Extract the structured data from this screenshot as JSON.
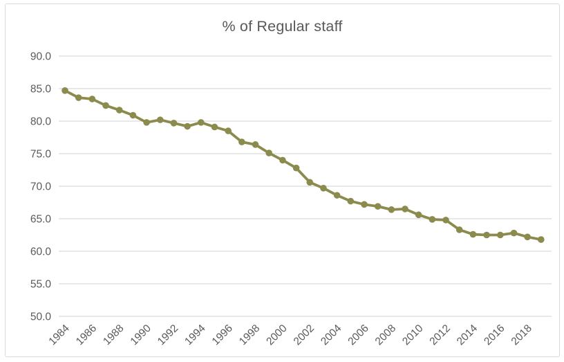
{
  "chart_data": {
    "type": "line",
    "title": "% of Regular staff",
    "x": [
      1984,
      1985,
      1986,
      1987,
      1988,
      1989,
      1990,
      1991,
      1992,
      1993,
      1994,
      1995,
      1996,
      1997,
      1998,
      1999,
      2000,
      2001,
      2002,
      2003,
      2004,
      2005,
      2006,
      2007,
      2008,
      2009,
      2010,
      2011,
      2012,
      2013,
      2014,
      2015,
      2016,
      2017,
      2018,
      2019
    ],
    "series": [
      {
        "name": "% of Regular staff",
        "values": [
          84.7,
          83.6,
          83.4,
          82.4,
          81.7,
          80.9,
          79.8,
          80.2,
          79.7,
          79.2,
          79.8,
          79.1,
          78.5,
          76.8,
          76.4,
          75.1,
          74.0,
          72.8,
          70.6,
          69.7,
          68.6,
          67.7,
          67.2,
          66.9,
          66.4,
          66.5,
          65.6,
          64.9,
          64.8,
          63.3,
          62.6,
          62.5,
          62.5,
          62.8,
          62.2,
          61.8
        ]
      }
    ],
    "x_tick_labels": [
      "1984",
      "1986",
      "1988",
      "1990",
      "1992",
      "1994",
      "1996",
      "1998",
      "2000",
      "2002",
      "2004",
      "2006",
      "2008",
      "2010",
      "2012",
      "2014",
      "2016",
      "2018"
    ],
    "y_ticks": [
      90.0,
      85.0,
      80.0,
      75.0,
      70.0,
      65.0,
      60.0,
      55.0,
      50.0
    ],
    "ylim": [
      50.0,
      90.0
    ],
    "grid": "horizontal",
    "legend": "none",
    "marker": "circle",
    "colors": {
      "line": "#8A8B4D",
      "marker": "#8A8B4D",
      "title_text": "#595959",
      "tick_text": "#595959",
      "gridline": "#d9d9d9",
      "frame_border": "#d9d9d9",
      "background": "#ffffff"
    }
  }
}
